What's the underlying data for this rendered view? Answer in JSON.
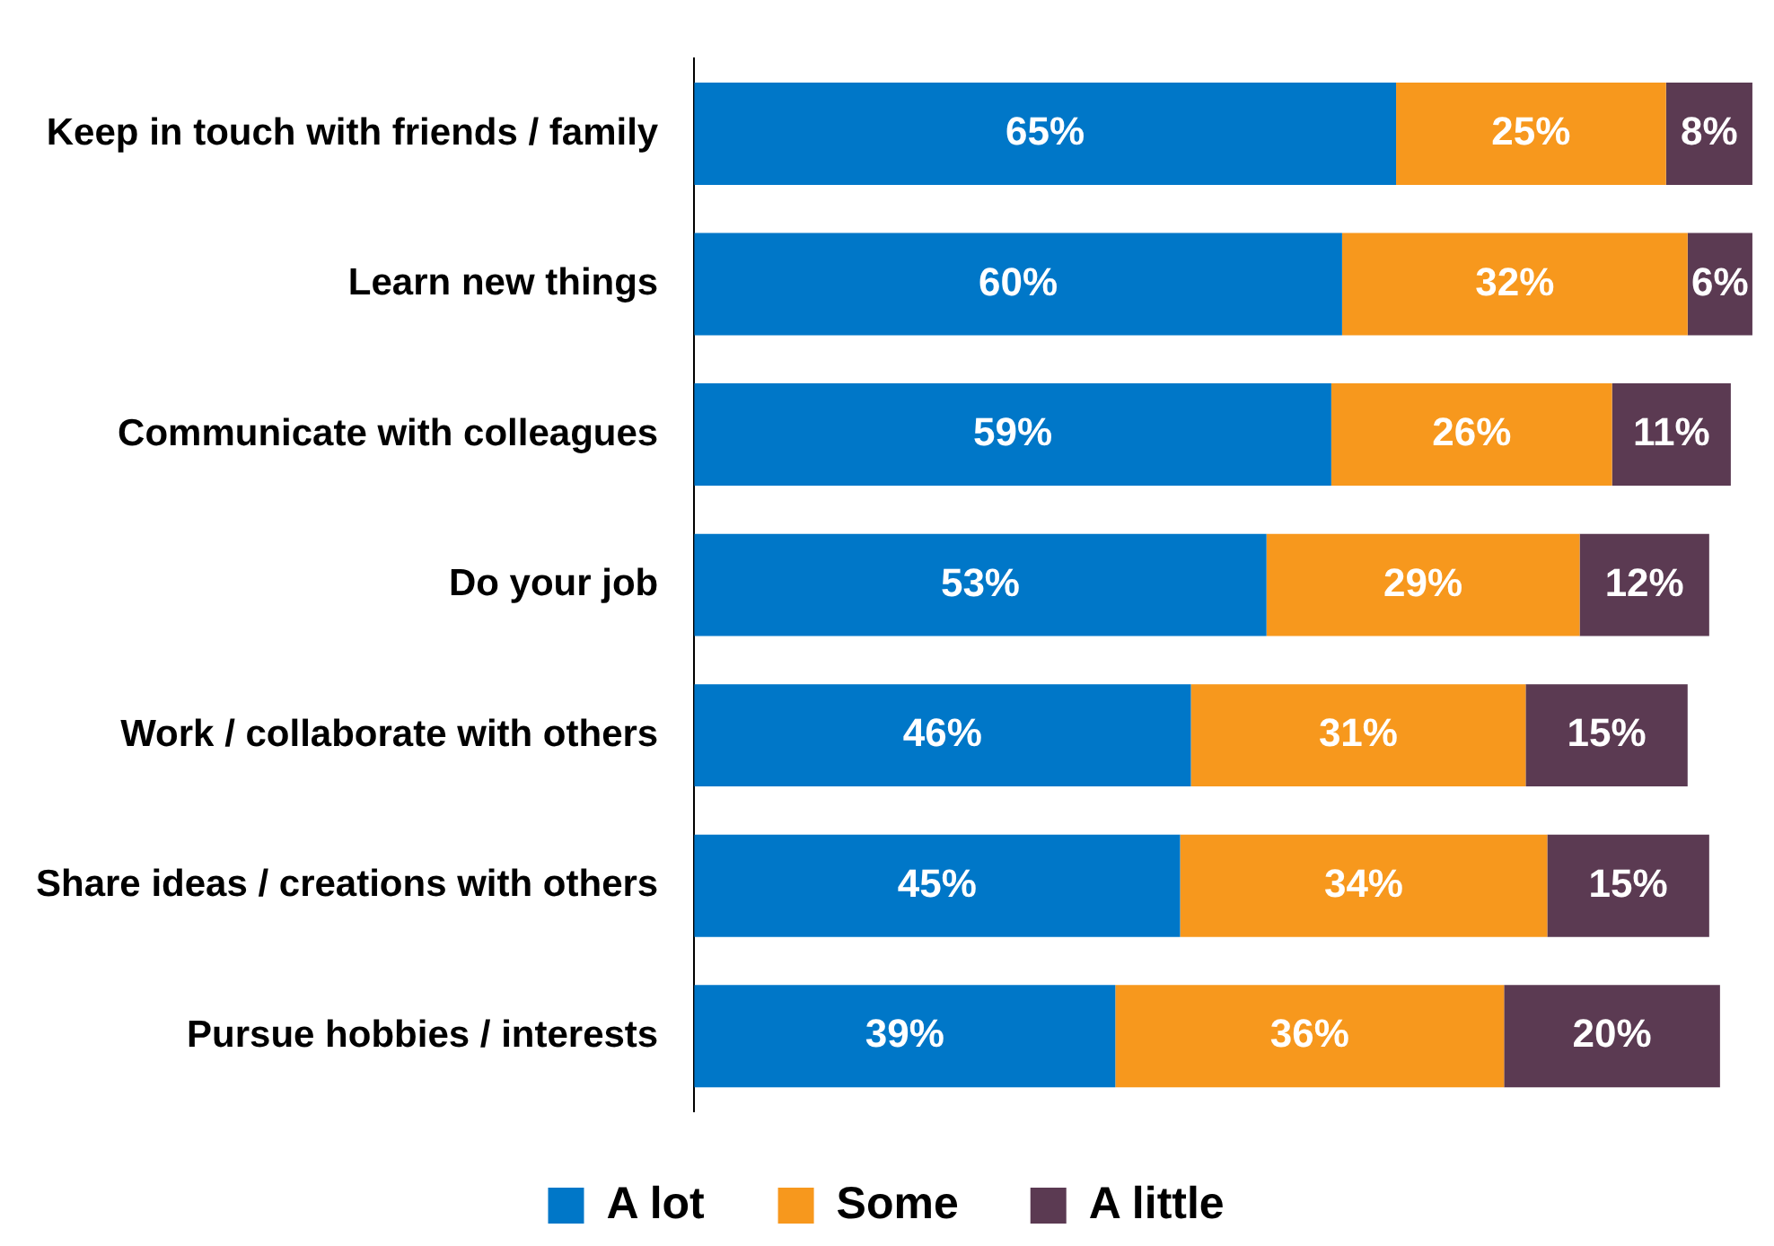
{
  "chart_data": {
    "type": "bar",
    "orientation": "horizontal",
    "stacked": true,
    "categories": [
      "Keep in touch with friends / family",
      "Learn new things",
      "Communicate with colleagues",
      "Do your job",
      "Work / collaborate with others",
      "Share ideas / creations with others",
      "Pursue hobbies / interests"
    ],
    "series": [
      {
        "name": "A lot",
        "color": "#0077c8",
        "values": [
          65,
          60,
          59,
          53,
          46,
          45,
          39
        ],
        "value_labels": [
          "65%",
          "60%",
          "59%",
          "53%",
          "46%",
          "45%",
          "39%"
        ]
      },
      {
        "name": "Some",
        "color": "#f7981d",
        "values": [
          25,
          32,
          26,
          29,
          31,
          34,
          36
        ],
        "value_labels": [
          "25%",
          "32%",
          "26%",
          "29%",
          "31%",
          "34%",
          "36%"
        ]
      },
      {
        "name": "A little",
        "color": "#5b3a52",
        "values": [
          8,
          6,
          11,
          12,
          15,
          15,
          20
        ],
        "value_labels": [
          "8%",
          "6%",
          "11%",
          "12%",
          "15%",
          "15%",
          "20%"
        ]
      }
    ],
    "tick_labels": "y",
    "grid": false,
    "legend": "bottom"
  }
}
